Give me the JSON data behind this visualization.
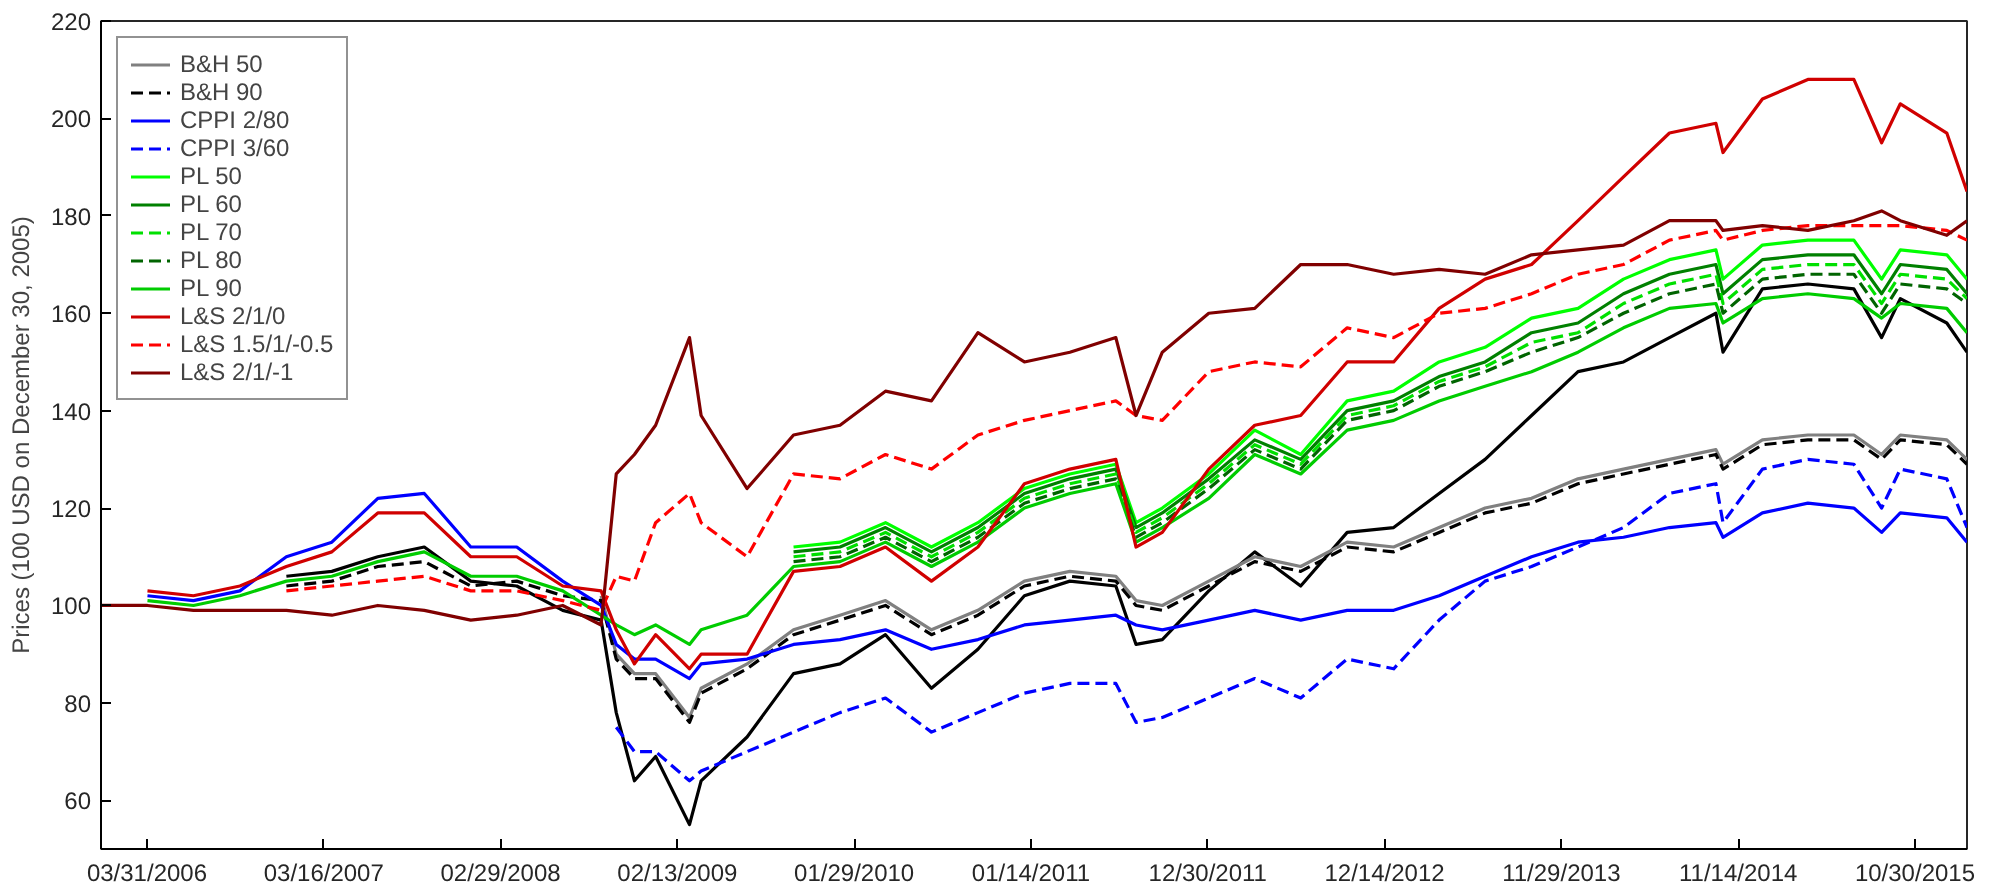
{
  "chart_data": {
    "type": "line",
    "ylabel": "Prices (100 USD on December 30, 2005)",
    "x": [
      "2005-12-30",
      "2006-04-01",
      "2006-07-01",
      "2006-10-01",
      "2007-01-01",
      "2007-04-01",
      "2007-07-01",
      "2007-10-01",
      "2008-01-01",
      "2008-04-01",
      "2008-07-01",
      "2008-09-15",
      "2008-10-15",
      "2008-11-20",
      "2009-01-01",
      "2009-03-09",
      "2009-04-01",
      "2009-07-01",
      "2009-10-01",
      "2010-01-01",
      "2010-04-01",
      "2010-07-01",
      "2010-10-01",
      "2011-01-01",
      "2011-04-01",
      "2011-07-01",
      "2011-08-10",
      "2011-10-01",
      "2012-01-01",
      "2012-04-01",
      "2012-07-01",
      "2012-10-01",
      "2013-01-01",
      "2013-04-01",
      "2013-07-01",
      "2013-10-01",
      "2014-01-01",
      "2014-04-01",
      "2014-07-01",
      "2014-10-01",
      "2014-10-15",
      "2015-01-01",
      "2015-04-01",
      "2015-07-01",
      "2015-08-25",
      "2015-10-01",
      "2016-01-01",
      "2016-02-10"
    ],
    "series": [
      {
        "color": "#000000",
        "values": [
          null,
          null,
          null,
          null,
          106,
          107,
          110,
          112,
          105,
          104,
          99,
          97,
          78,
          64,
          69,
          55,
          64,
          73,
          86,
          88,
          94,
          83,
          91,
          102,
          105,
          104,
          92,
          93,
          103,
          111,
          104,
          115,
          116,
          123,
          130,
          139,
          148,
          150,
          155,
          160,
          152,
          165,
          166,
          165,
          155,
          163,
          158,
          152
        ]
      },
      {
        "name": "B&H 50",
        "color": "#808080",
        "values": [
          null,
          null,
          null,
          null,
          null,
          null,
          null,
          null,
          null,
          null,
          null,
          102,
          90,
          86,
          86,
          77,
          83,
          88,
          95,
          98,
          101,
          95,
          99,
          105,
          107,
          106,
          101,
          100,
          105,
          110,
          108,
          113,
          112,
          116,
          120,
          122,
          126,
          128,
          130,
          132,
          129,
          134,
          135,
          135,
          131,
          135,
          134,
          130
        ]
      },
      {
        "name": "B&H 90",
        "color": "#000000",
        "line_style": "dashed",
        "values": [
          null,
          null,
          null,
          null,
          104,
          105,
          108,
          109,
          104,
          105,
          102,
          101,
          89,
          85,
          85,
          76,
          82,
          87,
          94,
          97,
          100,
          94,
          98,
          104,
          106,
          105,
          100,
          99,
          104,
          109,
          107,
          112,
          111,
          115,
          119,
          121,
          125,
          127,
          129,
          131,
          128,
          133,
          134,
          134,
          130,
          134,
          133,
          129
        ]
      },
      {
        "name": "CPPI 2/80",
        "color": "#0000ff",
        "values": [
          null,
          102,
          101,
          103,
          110,
          113,
          122,
          123,
          112,
          112,
          105,
          100,
          92,
          89,
          89,
          85,
          88,
          89,
          92,
          93,
          95,
          91,
          93,
          96,
          97,
          98,
          96,
          95,
          97,
          99,
          97,
          99,
          99,
          102,
          106,
          110,
          113,
          114,
          116,
          117,
          114,
          119,
          121,
          120,
          115,
          119,
          118,
          113
        ]
      },
      {
        "name": "CPPI 3/60",
        "color": "#0000ff",
        "line_style": "dashed",
        "values": [
          null,
          null,
          null,
          null,
          null,
          null,
          null,
          null,
          null,
          null,
          null,
          null,
          75,
          70,
          70,
          64,
          66,
          70,
          74,
          78,
          81,
          74,
          78,
          82,
          84,
          84,
          76,
          77,
          81,
          85,
          81,
          89,
          87,
          97,
          105,
          108,
          112,
          116,
          123,
          125,
          117,
          128,
          130,
          129,
          120,
          128,
          126,
          116
        ]
      },
      {
        "name": "PL 50",
        "color": "#00ff00",
        "values": [
          null,
          null,
          null,
          null,
          null,
          null,
          null,
          null,
          null,
          null,
          null,
          null,
          null,
          null,
          null,
          null,
          null,
          null,
          112,
          113,
          117,
          112,
          117,
          124,
          127,
          129,
          117,
          120,
          127,
          136,
          131,
          142,
          144,
          150,
          153,
          159,
          161,
          167,
          171,
          173,
          167,
          174,
          175,
          175,
          167,
          173,
          172,
          167
        ]
      },
      {
        "name": "PL 60",
        "color": "#008000",
        "values": [
          null,
          null,
          null,
          null,
          null,
          null,
          null,
          null,
          null,
          null,
          null,
          null,
          null,
          null,
          null,
          null,
          null,
          null,
          111,
          112,
          116,
          111,
          116,
          123,
          126,
          128,
          116,
          119,
          126,
          134,
          130,
          140,
          142,
          147,
          150,
          156,
          158,
          164,
          168,
          170,
          164,
          171,
          172,
          172,
          164,
          170,
          169,
          164
        ]
      },
      {
        "name": "PL 70",
        "color": "#00e000",
        "line_style": "dashed",
        "values": [
          null,
          null,
          null,
          null,
          null,
          null,
          null,
          null,
          null,
          null,
          null,
          null,
          null,
          null,
          null,
          null,
          null,
          null,
          110,
          111,
          115,
          110,
          115,
          122,
          125,
          127,
          115,
          118,
          125,
          133,
          129,
          139,
          141,
          146,
          149,
          154,
          156,
          162,
          166,
          168,
          162,
          169,
          170,
          170,
          162,
          168,
          167,
          163
        ]
      },
      {
        "name": "PL 80",
        "color": "#006400",
        "line_style": "dashed",
        "values": [
          null,
          null,
          null,
          null,
          null,
          null,
          null,
          null,
          null,
          null,
          null,
          null,
          null,
          null,
          null,
          null,
          null,
          null,
          109,
          110,
          114,
          109,
          114,
          121,
          124,
          126,
          114,
          117,
          124,
          132,
          128,
          138,
          140,
          145,
          148,
          152,
          155,
          160,
          164,
          166,
          160,
          167,
          168,
          168,
          160,
          166,
          165,
          162
        ]
      },
      {
        "name": "PL 90",
        "color": "#00cc00",
        "values": [
          null,
          101,
          100,
          102,
          105,
          106,
          109,
          111,
          106,
          106,
          103,
          98,
          96,
          94,
          96,
          92,
          95,
          98,
          108,
          109,
          113,
          108,
          113,
          120,
          123,
          125,
          113,
          116,
          122,
          131,
          127,
          136,
          138,
          142,
          145,
          148,
          152,
          157,
          161,
          162,
          158,
          163,
          164,
          163,
          159,
          162,
          161,
          156
        ]
      },
      {
        "name": "L&S 2/1/0",
        "color": "#d00000",
        "values": [
          null,
          103,
          102,
          104,
          108,
          111,
          119,
          119,
          110,
          110,
          104,
          103,
          95,
          88,
          94,
          87,
          90,
          90,
          107,
          108,
          112,
          105,
          112,
          125,
          128,
          130,
          112,
          115,
          128,
          137,
          139,
          150,
          150,
          161,
          167,
          170,
          179,
          188,
          197,
          199,
          193,
          204,
          208,
          208,
          195,
          203,
          197,
          185
        ]
      },
      {
        "name": "L&S 1.5/1/-0.5",
        "color": "#ff0000",
        "line_style": "dashed",
        "values": [
          null,
          null,
          null,
          null,
          103,
          104,
          105,
          106,
          103,
          103,
          101,
          99,
          106,
          105,
          117,
          123,
          117,
          110,
          127,
          126,
          131,
          128,
          135,
          138,
          140,
          142,
          139,
          138,
          148,
          150,
          149,
          157,
          155,
          160,
          161,
          164,
          168,
          170,
          175,
          177,
          175,
          177,
          178,
          178,
          178,
          178,
          177,
          175
        ]
      },
      {
        "name": "L&S 2/1/-1",
        "color": "#800000",
        "values": [
          100,
          100,
          99,
          99,
          99,
          98,
          100,
          99,
          97,
          98,
          100,
          96,
          127,
          131,
          137,
          155,
          139,
          124,
          135,
          137,
          144,
          142,
          156,
          150,
          152,
          155,
          139,
          152,
          160,
          161,
          170,
          170,
          168,
          169,
          168,
          172,
          173,
          174,
          179,
          179,
          177,
          178,
          177,
          179,
          181,
          179,
          176,
          179
        ]
      }
    ],
    "xlim": [
      "2005-12-30",
      "2016-02-10"
    ],
    "xticks": [
      {
        "value": "2006-03-31",
        "label": "03/31/2006"
      },
      {
        "value": "2007-03-16",
        "label": "03/16/2007"
      },
      {
        "value": "2008-02-29",
        "label": "02/29/2008"
      },
      {
        "value": "2009-02-13",
        "label": "02/13/2009"
      },
      {
        "value": "2010-01-29",
        "label": "01/29/2010"
      },
      {
        "value": "2011-01-14",
        "label": "01/14/2011"
      },
      {
        "value": "2011-12-30",
        "label": "12/30/2011"
      },
      {
        "value": "2012-12-14",
        "label": "12/14/2012"
      },
      {
        "value": "2013-11-29",
        "label": "11/29/2013"
      },
      {
        "value": "2014-11-14",
        "label": "11/14/2014"
      },
      {
        "value": "2015-10-30",
        "label": "10/30/2015"
      }
    ],
    "ylim": [
      50,
      220
    ],
    "yticks": [
      60,
      80,
      100,
      120,
      140,
      160,
      180,
      200,
      220
    ],
    "legend": "top left",
    "grid": false,
    "marker": "none"
  }
}
